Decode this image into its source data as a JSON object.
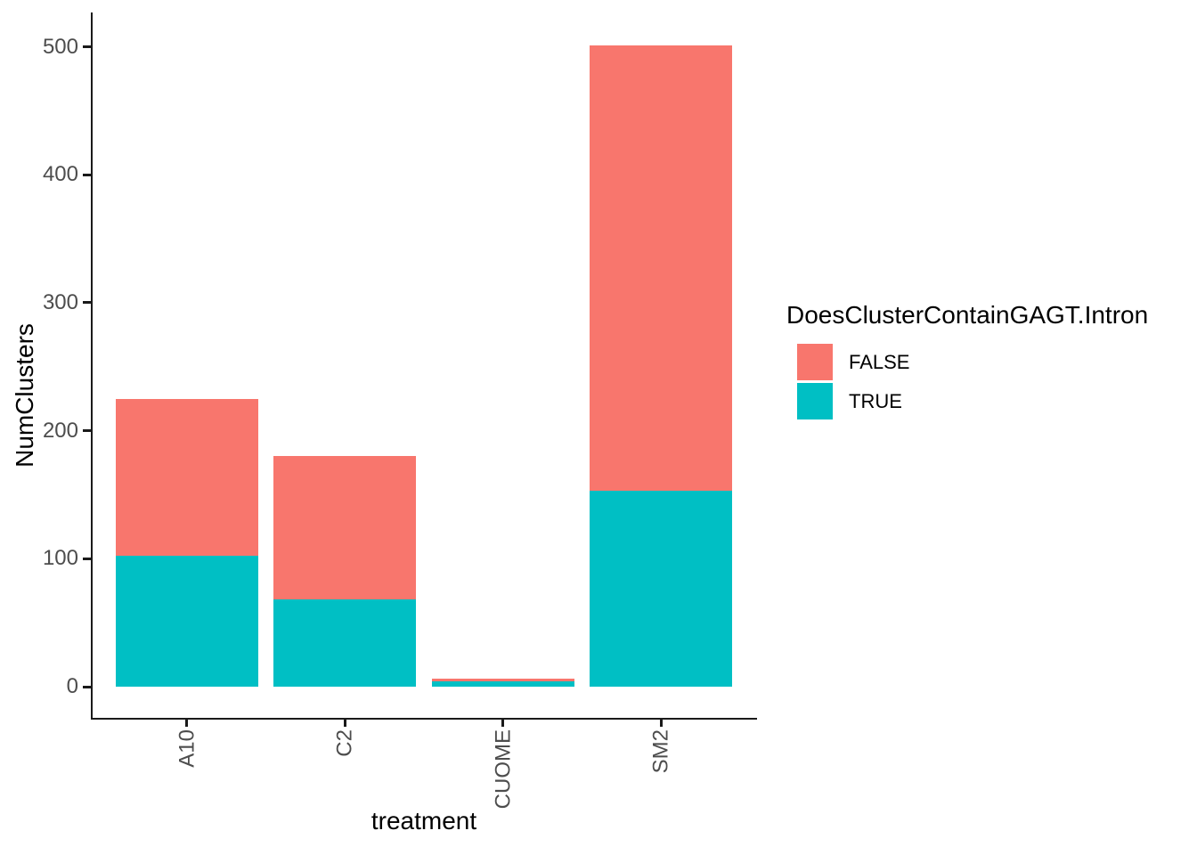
{
  "chart_data": {
    "type": "bar",
    "stacked": true,
    "title": "",
    "xlabel": "treatment",
    "ylabel": "NumClusters",
    "categories": [
      "A10",
      "C2",
      "CUOME",
      "SM2"
    ],
    "series": [
      {
        "name": "FALSE",
        "color": "#F8766D",
        "values": [
          123,
          112,
          2,
          348
        ]
      },
      {
        "name": "TRUE",
        "color": "#00BFC4",
        "values": [
          102,
          68,
          4,
          153
        ]
      }
    ],
    "stack_order_bottom_to_top": [
      "TRUE",
      "FALSE"
    ],
    "y_ticks": [
      0,
      100,
      200,
      300,
      400,
      500
    ],
    "ylim": [
      0,
      525
    ],
    "grid": false,
    "legend": {
      "title": "DoesClusterContainGAGT.Intron",
      "position": "right",
      "entries": [
        "FALSE",
        "TRUE"
      ]
    }
  }
}
